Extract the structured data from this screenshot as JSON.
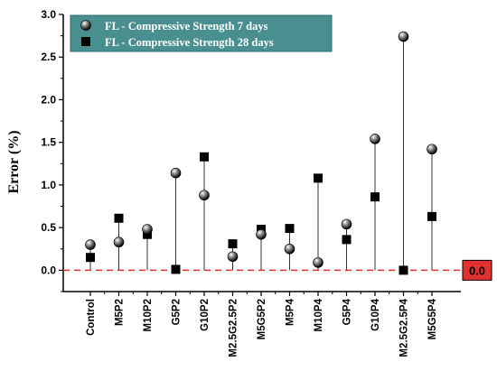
{
  "chart_data": {
    "type": "scatter",
    "ylabel": "Error (%)",
    "xlabel": "",
    "categories": [
      "Control",
      "M5P2",
      "M10P2",
      "G5P2",
      "G10P2",
      "M2.5G2.5P2",
      "M5G5P2",
      "M5P4",
      "M10P4",
      "G5P4",
      "G10P4",
      "M2.5G2.5P4",
      "M5G5P4"
    ],
    "ylim": [
      -0.25,
      3.0
    ],
    "yticks": [
      "0.0",
      "0.5",
      "1.0",
      "1.5",
      "2.0",
      "2.5",
      "3.0"
    ],
    "series": [
      {
        "name": "FL - Compressive Strength 7 days",
        "marker": "sphere",
        "values": [
          0.3,
          0.33,
          0.48,
          1.14,
          0.88,
          0.16,
          0.42,
          0.25,
          0.09,
          0.54,
          1.54,
          2.74,
          1.42
        ]
      },
      {
        "name": "FL - Compressive Strength 28 days",
        "marker": "square",
        "values": [
          0.15,
          0.61,
          0.42,
          0.01,
          1.33,
          0.31,
          0.48,
          0.49,
          1.08,
          0.36,
          0.86,
          0.0,
          0.63
        ]
      }
    ],
    "reference_line": {
      "y": 0.0,
      "label": "0.0",
      "color": "#e03030"
    },
    "legend": {
      "position": "top-left",
      "background": "#4a8f8f"
    },
    "grid": false
  }
}
